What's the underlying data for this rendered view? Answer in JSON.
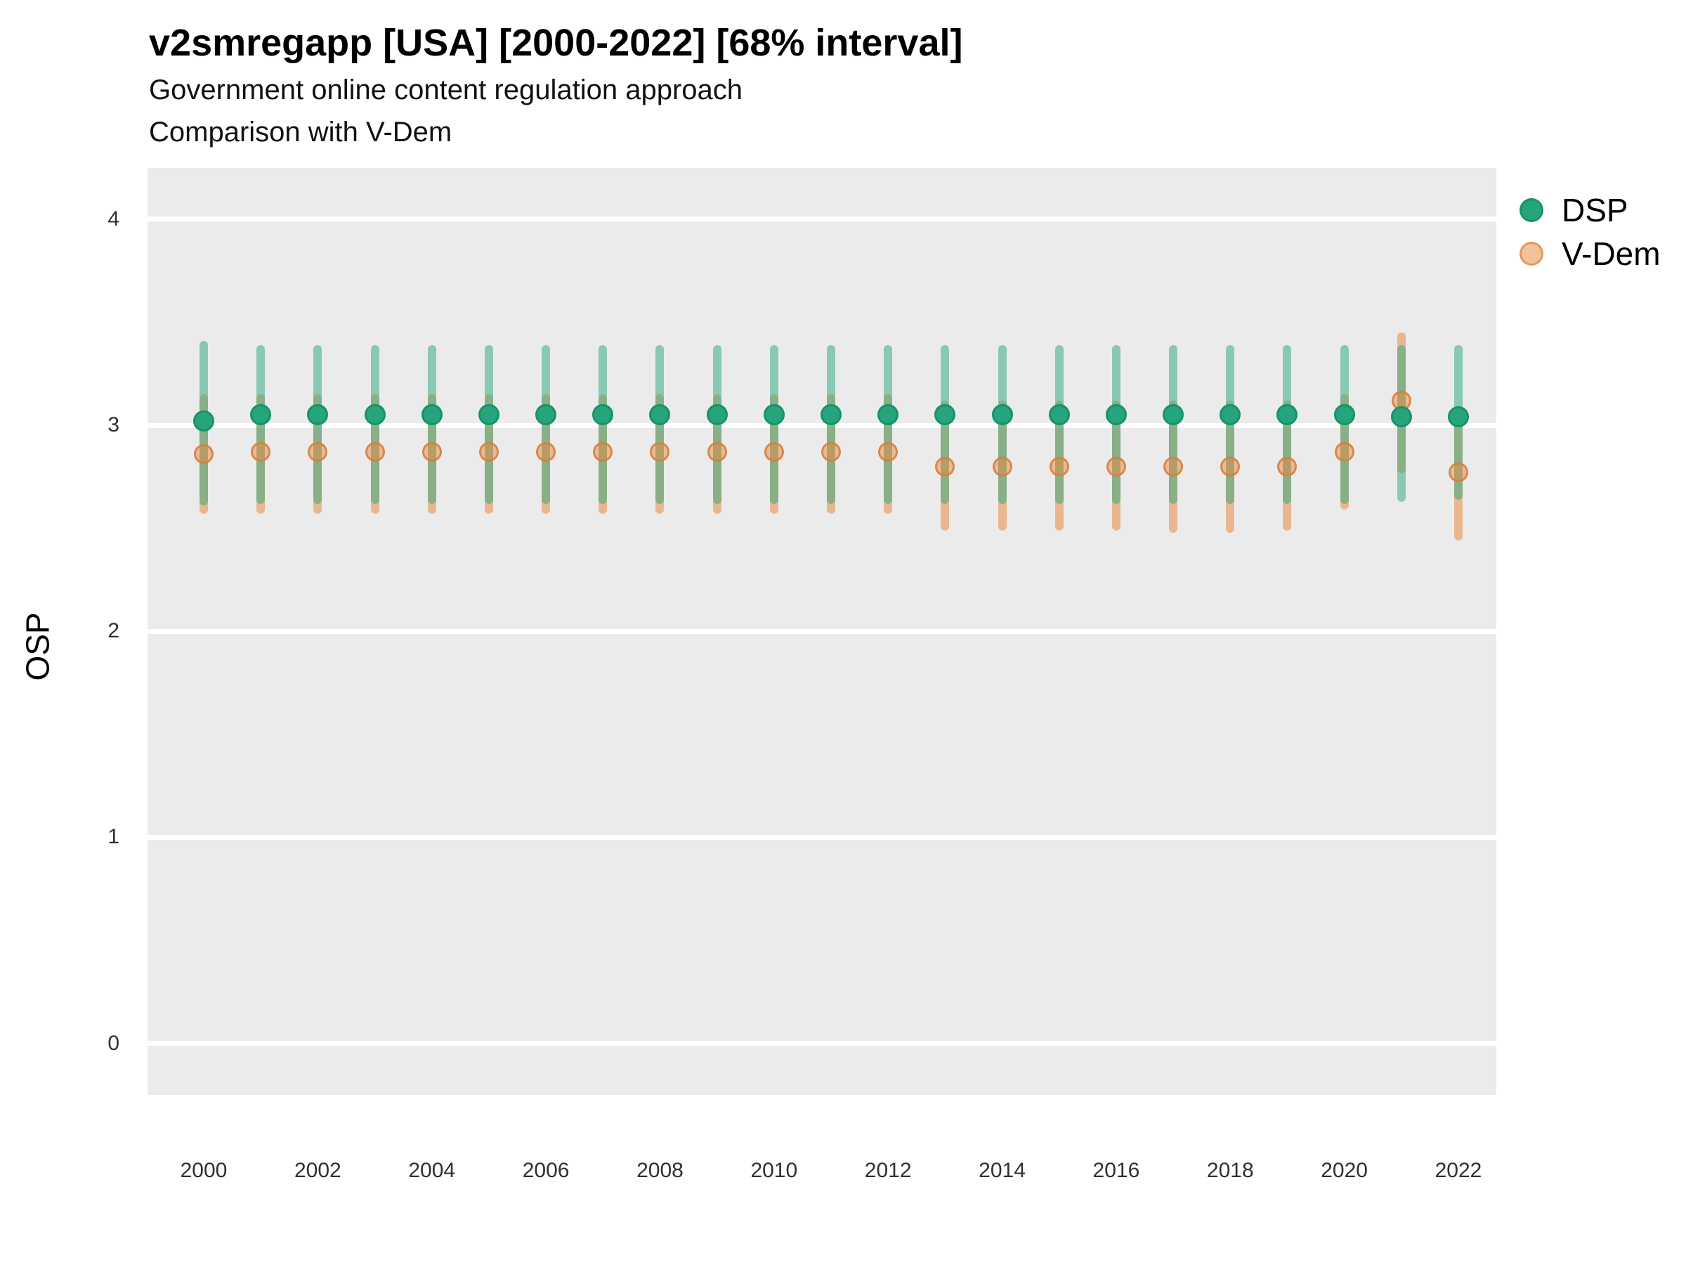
{
  "header": {
    "title": "v2smregapp [USA] [2000-2022] [68% interval]",
    "subtitle1": "Government online content regulation approach",
    "subtitle2": "Comparison with V-Dem"
  },
  "axes": {
    "y_label": "OSP",
    "y_ticks": [
      0,
      1,
      2,
      3,
      4
    ],
    "x_ticks": [
      2000,
      2002,
      2004,
      2006,
      2008,
      2010,
      2012,
      2014,
      2016,
      2018,
      2020,
      2022
    ]
  },
  "legend": {
    "items": [
      {
        "label": "DSP",
        "color": "#26a47b",
        "border": "#189269"
      },
      {
        "label": "V-Dem",
        "color": "#f2c298",
        "border": "#e39a62"
      }
    ]
  },
  "colors": {
    "panel_background": "#ebebeb",
    "gridline": "#ffffff",
    "dsp_point": "#26a47b",
    "dsp_point_border": "#189269",
    "dsp_bar": "rgba(40,167,124,0.5)",
    "vdem_point_fill": "rgba(231,138,69,0.5)",
    "vdem_point_border": "rgba(216,126,58,0.85)",
    "vdem_bar": "rgba(231,138,69,0.55)",
    "tick_text": "#303030"
  },
  "chart_data": {
    "type": "scatter",
    "title": "v2smregapp [USA] [2000-2022] [68% interval]",
    "subtitle": [
      "Government online content regulation approach",
      "Comparison with V-Dem"
    ],
    "xlabel": "",
    "ylabel": "OSP",
    "interval": "68%",
    "ylim": [
      -0.25,
      4.25
    ],
    "yticks": [
      0,
      1,
      2,
      3,
      4
    ],
    "xticks": [
      2000,
      2002,
      2004,
      2006,
      2008,
      2010,
      2012,
      2014,
      2016,
      2018,
      2020,
      2022
    ],
    "grid": "major-horizontal-white-on-gray",
    "legend_position": "right",
    "x": [
      2000,
      2001,
      2002,
      2003,
      2004,
      2005,
      2006,
      2007,
      2008,
      2009,
      2010,
      2011,
      2012,
      2013,
      2014,
      2015,
      2016,
      2017,
      2018,
      2019,
      2020,
      2021,
      2022
    ],
    "series": [
      {
        "name": "DSP",
        "y": [
          3.02,
          3.05,
          3.05,
          3.05,
          3.05,
          3.05,
          3.05,
          3.05,
          3.05,
          3.05,
          3.05,
          3.05,
          3.05,
          3.05,
          3.05,
          3.05,
          3.05,
          3.05,
          3.05,
          3.05,
          3.05,
          3.04,
          3.04
        ],
        "lo": [
          2.63,
          2.64,
          2.64,
          2.64,
          2.64,
          2.64,
          2.64,
          2.64,
          2.64,
          2.64,
          2.64,
          2.64,
          2.64,
          2.64,
          2.64,
          2.64,
          2.64,
          2.64,
          2.64,
          2.64,
          2.64,
          2.65,
          2.66
        ],
        "hi": [
          3.39,
          3.37,
          3.37,
          3.37,
          3.37,
          3.37,
          3.37,
          3.37,
          3.37,
          3.37,
          3.37,
          3.37,
          3.37,
          3.37,
          3.37,
          3.37,
          3.37,
          3.37,
          3.37,
          3.37,
          3.37,
          3.37,
          3.37
        ]
      },
      {
        "name": "V-Dem",
        "y": [
          2.86,
          2.87,
          2.87,
          2.87,
          2.87,
          2.87,
          2.87,
          2.87,
          2.87,
          2.87,
          2.87,
          2.87,
          2.87,
          2.8,
          2.8,
          2.8,
          2.8,
          2.8,
          2.8,
          2.8,
          2.87,
          3.12,
          2.77
        ],
        "lo": [
          2.59,
          2.59,
          2.59,
          2.59,
          2.59,
          2.59,
          2.59,
          2.59,
          2.59,
          2.59,
          2.59,
          2.59,
          2.59,
          2.51,
          2.51,
          2.51,
          2.51,
          2.5,
          2.5,
          2.51,
          2.61,
          2.79,
          2.46
        ],
        "hi": [
          3.13,
          3.13,
          3.13,
          3.13,
          3.13,
          3.13,
          3.13,
          3.13,
          3.13,
          3.13,
          3.13,
          3.13,
          3.13,
          3.1,
          3.1,
          3.1,
          3.1,
          3.1,
          3.1,
          3.1,
          3.13,
          3.43,
          3.03
        ]
      }
    ]
  }
}
